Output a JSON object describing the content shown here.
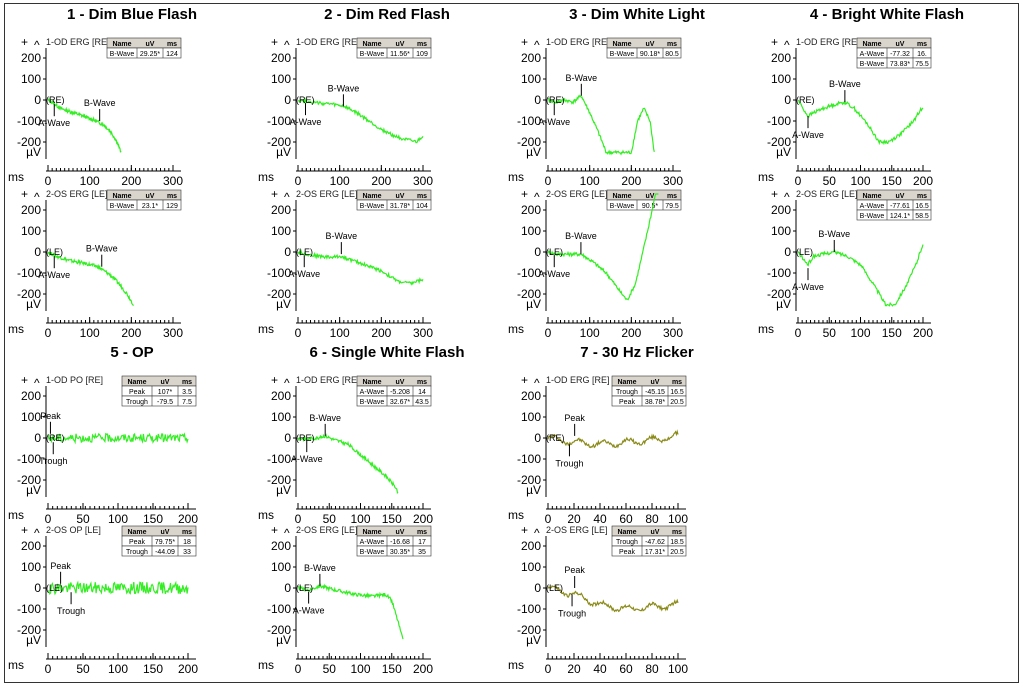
{
  "sections": [
    {
      "title": "1 - Dim Blue Flash"
    },
    {
      "title": "2 - Dim Red Flash"
    },
    {
      "title": "3 - Dim White Light"
    },
    {
      "title": "4 - Bright White Flash"
    },
    {
      "title": "5 - OP"
    },
    {
      "title": "6 - Single White Flash"
    },
    {
      "title": "7 - 30 Hz Flicker"
    }
  ],
  "axis_text": {
    "x_unit": "ms",
    "y_unit": "µV"
  },
  "table_header": [
    "Name",
    "uV",
    "ms"
  ],
  "colors": {
    "green_trace": "#33ee22",
    "olive_trace": "#8b8b1a",
    "table_header_bg": "#d9d4cc"
  },
  "chart_data": [
    {
      "id": "p1a",
      "type": "line",
      "section": 0,
      "channel": "1-OD ERG [RE]",
      "eye_marker": "(RE)",
      "xlim": [
        0,
        300
      ],
      "xticks": [
        0,
        100,
        200,
        300
      ],
      "ylim": [
        -200,
        200
      ],
      "yticks": [
        200,
        100,
        0,
        -100,
        -200
      ],
      "color": "green",
      "table": [
        [
          "B-Wave",
          "29.25*",
          "124"
        ]
      ],
      "markers": [
        {
          "label": "A-Wave",
          "x": 15,
          "y": -20,
          "pos": "below"
        },
        {
          "label": "B-Wave",
          "x": 124,
          "y": -100,
          "pos": "above"
        }
      ],
      "trace": [
        [
          0,
          0
        ],
        [
          10,
          -10
        ],
        [
          30,
          -40
        ],
        [
          60,
          -60
        ],
        [
          90,
          -80
        ],
        [
          115,
          -100
        ],
        [
          135,
          -120
        ],
        [
          150,
          -150
        ],
        [
          160,
          -180
        ],
        [
          168,
          -210
        ],
        [
          175,
          -250
        ]
      ]
    },
    {
      "id": "p1b",
      "type": "line",
      "section": 0,
      "channel": "2-OS ERG [LE]",
      "eye_marker": "(LE)",
      "xlim": [
        0,
        300
      ],
      "xticks": [
        0,
        100,
        200,
        300
      ],
      "ylim": [
        -200,
        200
      ],
      "yticks": [
        200,
        100,
        0,
        -100,
        -200
      ],
      "color": "green",
      "table": [
        [
          "B-Wave",
          "23.1*",
          "129"
        ]
      ],
      "markers": [
        {
          "label": "A-Wave",
          "x": 15,
          "y": -20,
          "pos": "below"
        },
        {
          "label": "B-Wave",
          "x": 129,
          "y": -70,
          "pos": "above"
        }
      ],
      "trace": [
        [
          0,
          0
        ],
        [
          20,
          -20
        ],
        [
          50,
          -40
        ],
        [
          90,
          -55
        ],
        [
          120,
          -70
        ],
        [
          150,
          -110
        ],
        [
          170,
          -150
        ],
        [
          190,
          -200
        ],
        [
          205,
          -250
        ]
      ]
    },
    {
      "id": "p2a",
      "type": "line",
      "section": 1,
      "channel": "1-OD ERG [RE]",
      "eye_marker": "(RE)",
      "xlim": [
        0,
        300
      ],
      "xticks": [
        0,
        100,
        200,
        300
      ],
      "ylim": [
        -200,
        200
      ],
      "yticks": [
        200,
        100,
        0,
        -100,
        -200
      ],
      "color": "green",
      "table": [
        [
          "B-Wave",
          "11.56*",
          "109"
        ]
      ],
      "markers": [
        {
          "label": "A-Wave",
          "x": 18,
          "y": -15,
          "pos": "below"
        },
        {
          "label": "B-Wave",
          "x": 109,
          "y": -30,
          "pos": "above"
        }
      ],
      "trace": [
        [
          0,
          0
        ],
        [
          20,
          -5
        ],
        [
          50,
          -15
        ],
        [
          80,
          -20
        ],
        [
          110,
          -30
        ],
        [
          140,
          -60
        ],
        [
          170,
          -100
        ],
        [
          200,
          -140
        ],
        [
          230,
          -170
        ],
        [
          260,
          -190
        ],
        [
          285,
          -200
        ],
        [
          300,
          -170
        ]
      ]
    },
    {
      "id": "p2b",
      "type": "line",
      "section": 1,
      "channel": "2-OS ERG [LE]",
      "eye_marker": "(LE)",
      "xlim": [
        0,
        300
      ],
      "xticks": [
        0,
        100,
        200,
        300
      ],
      "ylim": [
        -200,
        200
      ],
      "yticks": [
        200,
        100,
        0,
        -100,
        -200
      ],
      "color": "green",
      "table": [
        [
          "B-Wave",
          "31.78*",
          "104"
        ]
      ],
      "markers": [
        {
          "label": "A-Wave",
          "x": 15,
          "y": -15,
          "pos": "below"
        },
        {
          "label": "B-Wave",
          "x": 104,
          "y": -10,
          "pos": "above"
        }
      ],
      "trace": [
        [
          0,
          0
        ],
        [
          20,
          -10
        ],
        [
          50,
          -20
        ],
        [
          80,
          -25
        ],
        [
          104,
          -20
        ],
        [
          130,
          -40
        ],
        [
          160,
          -60
        ],
        [
          200,
          -90
        ],
        [
          240,
          -140
        ],
        [
          270,
          -150
        ],
        [
          300,
          -130
        ]
      ]
    },
    {
      "id": "p3a",
      "type": "line",
      "section": 2,
      "channel": "1-OD ERG [RE]",
      "eye_marker": "(RE)",
      "xlim": [
        0,
        300
      ],
      "xticks": [
        0,
        100,
        200,
        300
      ],
      "ylim": [
        -200,
        200
      ],
      "yticks": [
        200,
        100,
        0,
        -100,
        -200
      ],
      "color": "green",
      "table": [
        [
          "B-Wave",
          "90.18*",
          "80.5"
        ]
      ],
      "markers": [
        {
          "label": "A-Wave",
          "x": 15,
          "y": -15,
          "pos": "below"
        },
        {
          "label": "B-Wave",
          "x": 80,
          "y": 20,
          "pos": "above"
        }
      ],
      "trace": [
        [
          0,
          0
        ],
        [
          20,
          -10
        ],
        [
          40,
          0
        ],
        [
          60,
          -10
        ],
        [
          80,
          20
        ],
        [
          100,
          -60
        ],
        [
          120,
          -150
        ],
        [
          140,
          -250
        ],
        [
          180,
          -250
        ],
        [
          200,
          -250
        ],
        [
          215,
          -100
        ],
        [
          230,
          -40
        ],
        [
          245,
          -100
        ],
        [
          255,
          -250
        ]
      ]
    },
    {
      "id": "p3b",
      "type": "line",
      "section": 2,
      "channel": "2-OS ERG [LE]",
      "eye_marker": "(LE)",
      "xlim": [
        0,
        300
      ],
      "xticks": [
        0,
        100,
        200,
        300
      ],
      "ylim": [
        -200,
        200
      ],
      "yticks": [
        200,
        100,
        0,
        -100,
        -200
      ],
      "color": "green",
      "table": [
        [
          "B-Wave",
          "90.5*",
          "79.5"
        ]
      ],
      "markers": [
        {
          "label": "A-Wave",
          "x": 15,
          "y": -15,
          "pos": "below"
        },
        {
          "label": "B-Wave",
          "x": 79,
          "y": -10,
          "pos": "above"
        }
      ],
      "trace": [
        [
          0,
          0
        ],
        [
          20,
          -10
        ],
        [
          50,
          -10
        ],
        [
          80,
          -10
        ],
        [
          110,
          -50
        ],
        [
          140,
          -100
        ],
        [
          170,
          -180
        ],
        [
          190,
          -230
        ],
        [
          210,
          -150
        ],
        [
          230,
          20
        ],
        [
          250,
          200
        ],
        [
          265,
          350
        ]
      ]
    },
    {
      "id": "p4a",
      "type": "line",
      "section": 3,
      "channel": "1-OD ERG [RE]",
      "eye_marker": "(RE)",
      "xlim": [
        0,
        200
      ],
      "xticks": [
        0,
        50,
        100,
        150,
        200
      ],
      "ylim": [
        -200,
        200
      ],
      "yticks": [
        200,
        100,
        0,
        -100,
        -200
      ],
      "color": "green",
      "table": [
        [
          "A-Wave",
          "-77.32",
          "16."
        ],
        [
          "B-Wave",
          "73.83*",
          "75.5"
        ]
      ],
      "markers": [
        {
          "label": "A-Wave",
          "x": 16,
          "y": -77,
          "pos": "below"
        },
        {
          "label": "B-Wave",
          "x": 75,
          "y": -10,
          "pos": "above"
        }
      ],
      "trace": [
        [
          0,
          0
        ],
        [
          10,
          -50
        ],
        [
          16,
          -77
        ],
        [
          25,
          -60
        ],
        [
          40,
          -40
        ],
        [
          60,
          -20
        ],
        [
          75,
          -10
        ],
        [
          90,
          -40
        ],
        [
          110,
          -110
        ],
        [
          130,
          -200
        ],
        [
          145,
          -200
        ],
        [
          165,
          -160
        ],
        [
          185,
          -100
        ],
        [
          200,
          -30
        ]
      ]
    },
    {
      "id": "p4b",
      "type": "line",
      "section": 3,
      "channel": "2-OS ERG [LE]",
      "eye_marker": "(LE)",
      "xlim": [
        0,
        200
      ],
      "xticks": [
        0,
        50,
        100,
        150,
        200
      ],
      "ylim": [
        -200,
        200
      ],
      "yticks": [
        200,
        100,
        0,
        -100,
        -200
      ],
      "color": "green",
      "table": [
        [
          "A-Wave",
          "-77.61",
          "16.5"
        ],
        [
          "B-Wave",
          "124.1*",
          "58.5"
        ]
      ],
      "markers": [
        {
          "label": "A-Wave",
          "x": 16,
          "y": -77,
          "pos": "below"
        },
        {
          "label": "B-Wave",
          "x": 58,
          "y": 0,
          "pos": "above"
        }
      ],
      "trace": [
        [
          0,
          0
        ],
        [
          10,
          -40
        ],
        [
          16,
          -60
        ],
        [
          25,
          -20
        ],
        [
          40,
          -10
        ],
        [
          58,
          0
        ],
        [
          80,
          -20
        ],
        [
          100,
          -60
        ],
        [
          120,
          -150
        ],
        [
          140,
          -250
        ],
        [
          155,
          -250
        ],
        [
          175,
          -150
        ],
        [
          190,
          -50
        ],
        [
          200,
          40
        ]
      ]
    },
    {
      "id": "p5a",
      "type": "line",
      "section": 4,
      "channel": "1-OD PO [RE]",
      "eye_marker": "(RE)",
      "xlim": [
        0,
        200
      ],
      "xticks": [
        0,
        50,
        100,
        150,
        200
      ],
      "ylim": [
        -200,
        200
      ],
      "yticks": [
        200,
        100,
        0,
        -100,
        -200
      ],
      "color": "green",
      "table": [
        [
          "Peak",
          "107*",
          "3.5"
        ],
        [
          "Trough",
          "-79.5",
          "7.5"
        ]
      ],
      "markers": [
        {
          "label": "Peak",
          "x": 3.5,
          "y": 20,
          "pos": "above"
        },
        {
          "label": "Trough",
          "x": 7.5,
          "y": -20,
          "pos": "below"
        }
      ],
      "trace": [
        [
          0,
          0
        ],
        [
          200,
          0
        ]
      ],
      "noise": 20
    },
    {
      "id": "p5b",
      "type": "line",
      "section": 4,
      "channel": "2-OS OP [LE]",
      "eye_marker": "(LE)",
      "xlim": [
        0,
        200
      ],
      "xticks": [
        0,
        50,
        100,
        150,
        200
      ],
      "ylim": [
        -200,
        200
      ],
      "yticks": [
        200,
        100,
        0,
        -100,
        -200
      ],
      "color": "green",
      "table": [
        [
          "Peak",
          "79.75*",
          "18"
        ],
        [
          "Trough",
          "-44.09",
          "33"
        ]
      ],
      "markers": [
        {
          "label": "Peak",
          "x": 18,
          "y": 20,
          "pos": "above"
        },
        {
          "label": "Trough",
          "x": 33,
          "y": -20,
          "pos": "below"
        }
      ],
      "trace": [
        [
          0,
          0
        ],
        [
          200,
          0
        ]
      ],
      "noise": 28
    },
    {
      "id": "p6a",
      "type": "line",
      "section": 5,
      "channel": "1-OD ERG [RE]",
      "eye_marker": "(RE)",
      "xlim": [
        0,
        200
      ],
      "xticks": [
        0,
        50,
        100,
        150,
        200
      ],
      "ylim": [
        -200,
        200
      ],
      "yticks": [
        200,
        100,
        0,
        -100,
        -200
      ],
      "color": "green",
      "table": [
        [
          "A-Wave",
          "-5.208",
          "14"
        ],
        [
          "B-Wave",
          "32.67*",
          "43.5"
        ]
      ],
      "markers": [
        {
          "label": "A-Wave",
          "x": 14,
          "y": -10,
          "pos": "below"
        },
        {
          "label": "B-Wave",
          "x": 43.5,
          "y": 10,
          "pos": "above"
        }
      ],
      "trace": [
        [
          0,
          0
        ],
        [
          14,
          -5
        ],
        [
          30,
          0
        ],
        [
          43,
          10
        ],
        [
          60,
          -10
        ],
        [
          80,
          -30
        ],
        [
          100,
          -80
        ],
        [
          120,
          -130
        ],
        [
          140,
          -180
        ],
        [
          155,
          -230
        ],
        [
          160,
          -260
        ]
      ]
    },
    {
      "id": "p6b",
      "type": "line",
      "section": 5,
      "channel": "2-OS ERG [LE]",
      "eye_marker": "(LE)",
      "xlim": [
        0,
        200
      ],
      "xticks": [
        0,
        50,
        100,
        150,
        200
      ],
      "ylim": [
        -200,
        200
      ],
      "yticks": [
        200,
        100,
        0,
        -100,
        -200
      ],
      "color": "green",
      "table": [
        [
          "A-Wave",
          "-16.68",
          "17"
        ],
        [
          "B-Wave",
          "30.35*",
          "35"
        ]
      ],
      "markers": [
        {
          "label": "A-Wave",
          "x": 17,
          "y": -17,
          "pos": "below"
        },
        {
          "label": "B-Wave",
          "x": 35,
          "y": 10,
          "pos": "above"
        }
      ],
      "trace": [
        [
          0,
          0
        ],
        [
          17,
          -10
        ],
        [
          35,
          10
        ],
        [
          60,
          -10
        ],
        [
          90,
          -30
        ],
        [
          120,
          -40
        ],
        [
          140,
          -30
        ],
        [
          150,
          -60
        ],
        [
          160,
          -160
        ],
        [
          168,
          -250
        ]
      ]
    },
    {
      "id": "p7a",
      "type": "line",
      "section": 6,
      "channel": "1-OD ERG [RE]",
      "eye_marker": "(RE)",
      "xlim": [
        0,
        100
      ],
      "xticks": [
        0,
        20,
        40,
        60,
        80,
        100
      ],
      "ylim": [
        -200,
        200
      ],
      "yticks": [
        200,
        100,
        0,
        -100,
        -200
      ],
      "color": "olive",
      "table": [
        [
          "Trough",
          "-45.15",
          "16.5"
        ],
        [
          "Peak",
          "38.78*",
          "20.5"
        ]
      ],
      "markers": [
        {
          "label": "Peak",
          "x": 20.5,
          "y": 10,
          "pos": "above"
        },
        {
          "label": "Trough",
          "x": 16.5,
          "y": -30,
          "pos": "below"
        }
      ],
      "trace": [
        [
          0,
          0
        ],
        [
          20,
          -20
        ],
        [
          40,
          -30
        ],
        [
          60,
          -20
        ],
        [
          80,
          -10
        ],
        [
          100,
          10
        ]
      ],
      "noise": 8,
      "wobble": 14
    },
    {
      "id": "p7b",
      "type": "line",
      "section": 6,
      "channel": "2-OS ERG [LE]",
      "eye_marker": "(LE)",
      "xlim": [
        0,
        100
      ],
      "xticks": [
        0,
        20,
        40,
        60,
        80,
        100
      ],
      "ylim": [
        -200,
        200
      ],
      "yticks": [
        200,
        100,
        0,
        -100,
        -200
      ],
      "color": "olive",
      "table": [
        [
          "Trough",
          "-47.62",
          "18.5"
        ],
        [
          "Peak",
          "17.31*",
          "20.5"
        ]
      ],
      "markers": [
        {
          "label": "Peak",
          "x": 20.5,
          "y": 0,
          "pos": "above"
        },
        {
          "label": "Trough",
          "x": 18.5,
          "y": -30,
          "pos": "below"
        }
      ],
      "trace": [
        [
          0,
          0
        ],
        [
          20,
          -30
        ],
        [
          40,
          -80
        ],
        [
          60,
          -100
        ],
        [
          80,
          -90
        ],
        [
          100,
          -80
        ]
      ],
      "noise": 8,
      "wobble": 14
    }
  ]
}
